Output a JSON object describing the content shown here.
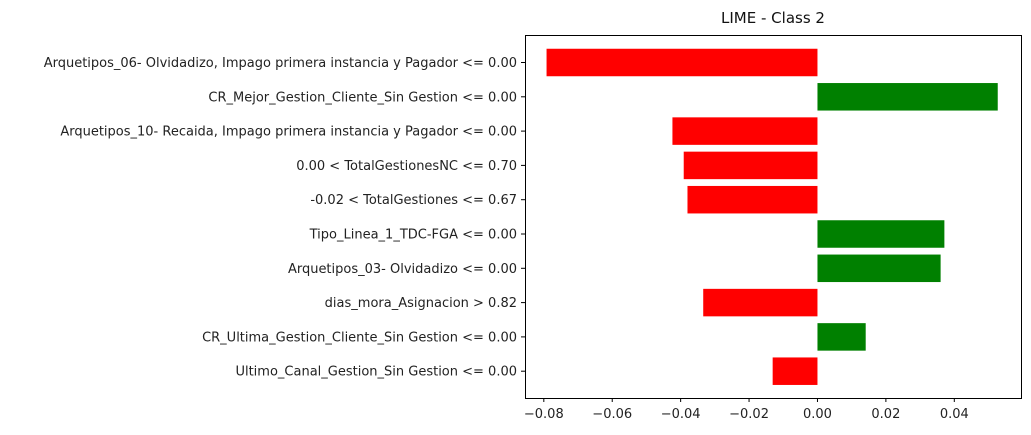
{
  "chart_data": {
    "type": "bar",
    "orientation": "horizontal",
    "title": "LIME - Class 2",
    "xlabel": "",
    "ylabel": "",
    "xlim": [
      -0.0855,
      0.0595
    ],
    "x_ticks": [
      -0.08,
      -0.06,
      -0.04,
      -0.02,
      0.0,
      0.02,
      0.04
    ],
    "x_tick_labels": [
      "−0.08",
      "−0.06",
      "−0.04",
      "−0.02",
      "0.00",
      "0.02",
      "0.04"
    ],
    "grid": false,
    "legend": "none",
    "colors": {
      "positive": "#008000",
      "negative": "#ff0000"
    },
    "categories": [
      "Arquetipos_06- Olvidadizo, Impago primera instancia y Pagador <= 0.00",
      "CR_Mejor_Gestion_Cliente_Sin Gestion <= 0.00",
      "Arquetipos_10- Recaida, Impago primera instancia y Pagador <= 0.00",
      "0.00 < TotalGestionesNC <= 0.70",
      "-0.02 < TotalGestiones <= 0.67",
      "Tipo_Linea_1_TDC-FGA <= 0.00",
      "Arquetipos_03- Olvidadizo <= 0.00",
      "dias_mora_Asignacion > 0.82",
      "CR_Ultima_Gestion_Cliente_Sin Gestion <= 0.00",
      "Ultimo_Canal_Gestion_Sin Gestion <= 0.00"
    ],
    "values": [
      -0.0792,
      0.0527,
      -0.0424,
      -0.0391,
      -0.038,
      0.0371,
      0.036,
      -0.0334,
      0.0141,
      -0.0131
    ]
  }
}
